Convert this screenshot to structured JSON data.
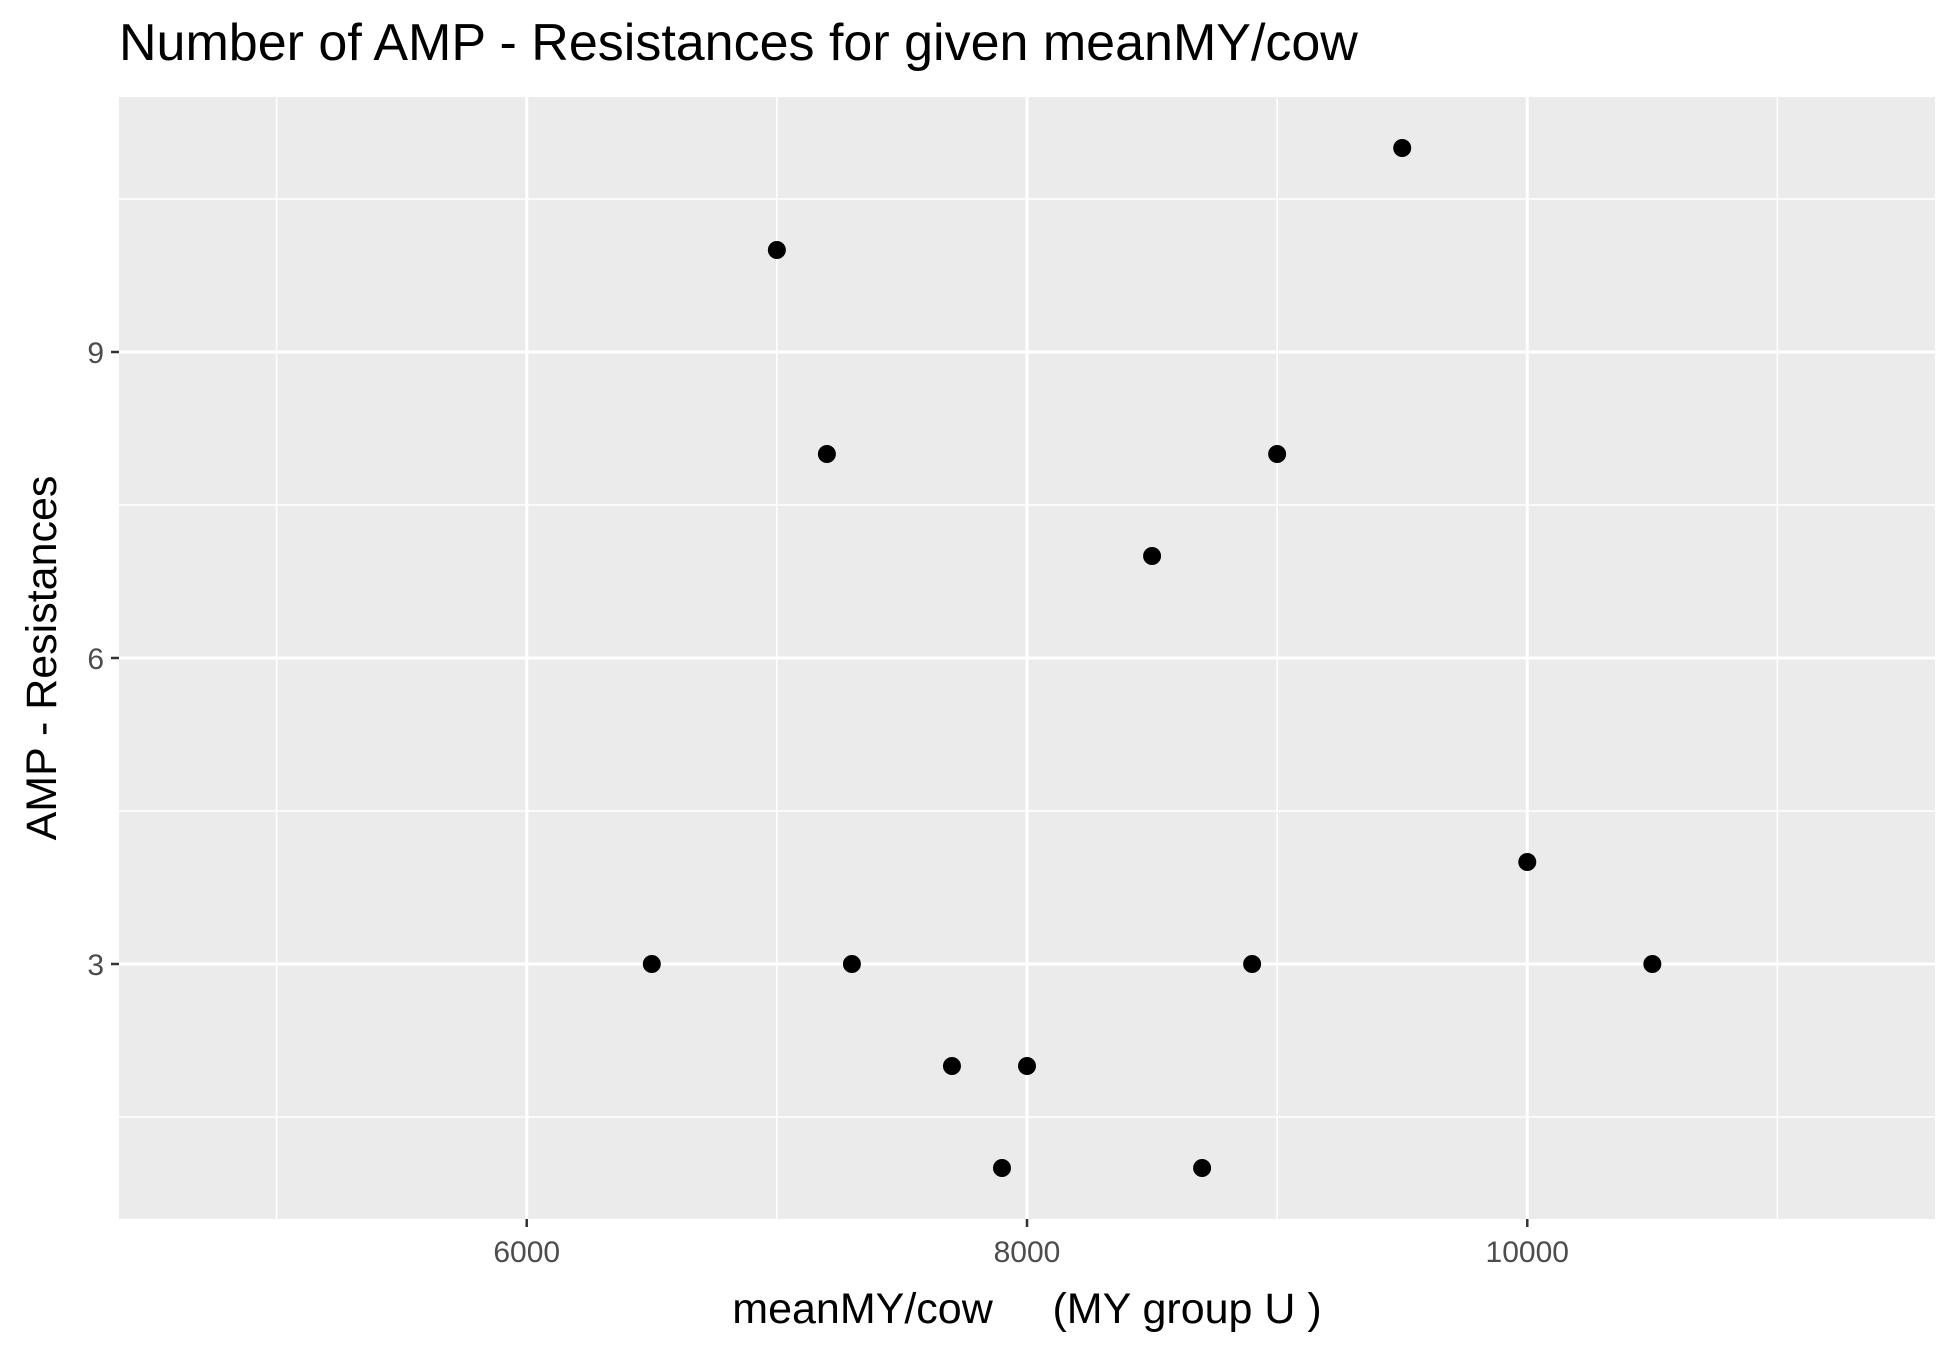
{
  "chart_data": {
    "type": "scatter",
    "title": "Number of AMP - Resistances for given meanMY/cow",
    "xlabel": "meanMY/cow     (MY group U )",
    "ylabel": "AMP - Resistances",
    "xlim": [
      4370,
      11630
    ],
    "ylim": [
      0.5,
      11.5
    ],
    "x_ticks": [
      6000,
      8000,
      10000
    ],
    "y_ticks": [
      3,
      6,
      9
    ],
    "x_minor": [
      5000,
      7000,
      9000,
      11000
    ],
    "y_minor": [
      1.5,
      4.5,
      7.5,
      10.5
    ],
    "grid": true,
    "legend": "none",
    "colors": {
      "panel": "#ebebeb",
      "grid": "#ffffff",
      "point": "#000000",
      "tick": "#333333"
    },
    "points": [
      {
        "x": 6500,
        "y": 3
      },
      {
        "x": 7000,
        "y": 10
      },
      {
        "x": 7200,
        "y": 8
      },
      {
        "x": 7300,
        "y": 3
      },
      {
        "x": 7700,
        "y": 2
      },
      {
        "x": 7900,
        "y": 1
      },
      {
        "x": 8000,
        "y": 2
      },
      {
        "x": 8500,
        "y": 7
      },
      {
        "x": 8700,
        "y": 1
      },
      {
        "x": 8900,
        "y": 3
      },
      {
        "x": 9000,
        "y": 8
      },
      {
        "x": 9500,
        "y": 11
      },
      {
        "x": 10000,
        "y": 4
      },
      {
        "x": 10500,
        "y": 3
      }
    ]
  }
}
